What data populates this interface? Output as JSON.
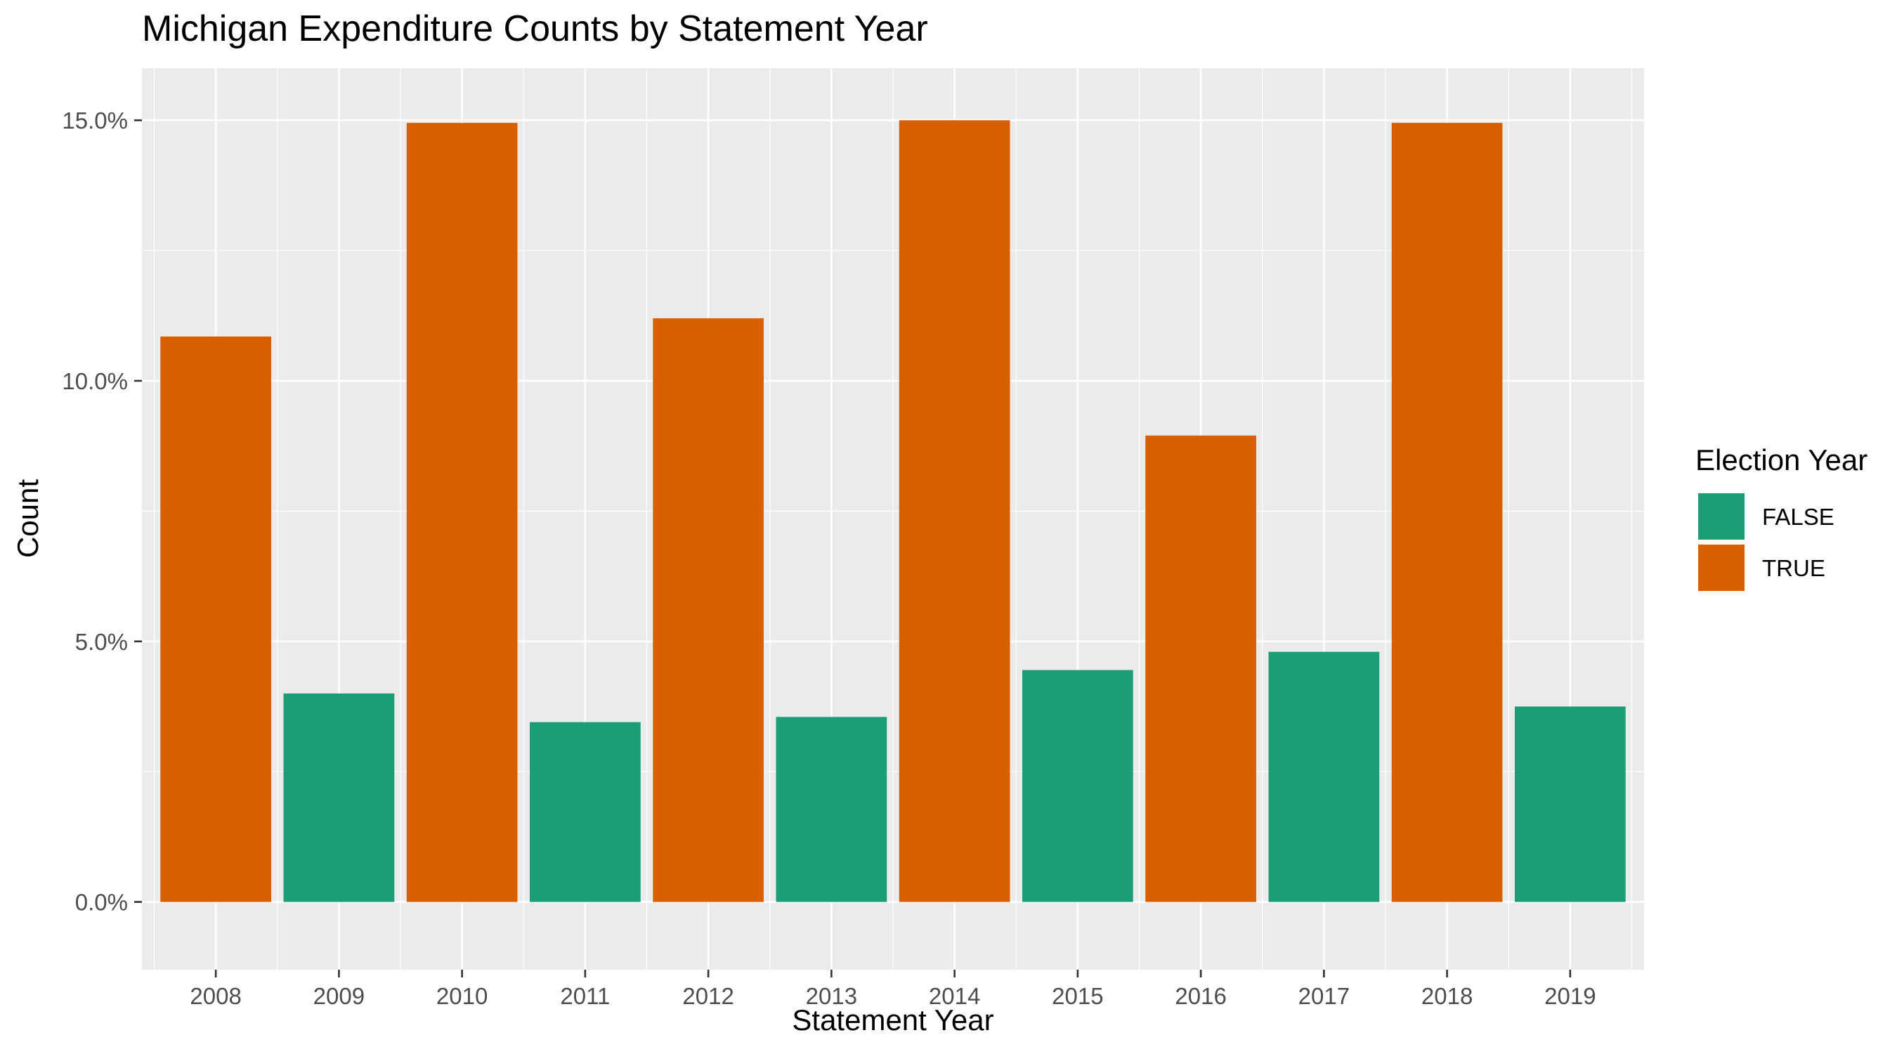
{
  "chart_data": {
    "type": "bar",
    "title": "Michigan Expenditure Counts by Statement Year",
    "xlabel": "Statement Year",
    "ylabel": "Count",
    "categories": [
      "2008",
      "2009",
      "2010",
      "2011",
      "2012",
      "2013",
      "2014",
      "2015",
      "2016",
      "2017",
      "2018",
      "2019"
    ],
    "values": [
      10.85,
      4.0,
      14.95,
      3.45,
      11.2,
      3.55,
      15.0,
      4.45,
      8.95,
      4.8,
      14.95,
      3.75
    ],
    "value_unit": "%",
    "election_year": [
      "TRUE",
      "FALSE",
      "TRUE",
      "FALSE",
      "TRUE",
      "FALSE",
      "TRUE",
      "FALSE",
      "TRUE",
      "FALSE",
      "TRUE",
      "FALSE"
    ],
    "ylim": [
      -1.3,
      16.0
    ],
    "yticks": [
      0,
      5,
      10,
      15
    ],
    "ytick_labels": [
      "0.0%",
      "5.0%",
      "10.0%",
      "15.0%"
    ],
    "grid": true,
    "legend": {
      "title": "Election Year",
      "placement": "right",
      "entries": [
        {
          "label": "FALSE",
          "color": "#1b9e77"
        },
        {
          "label": "TRUE",
          "color": "#d95f02"
        }
      ]
    },
    "panel_background": "#ebebeb",
    "gridline_color": "#ffffff"
  }
}
